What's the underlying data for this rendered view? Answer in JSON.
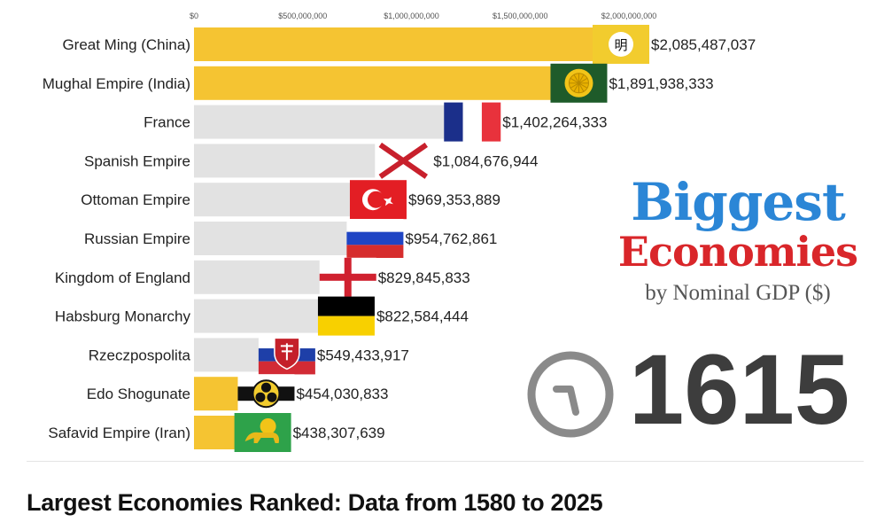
{
  "chart_data": {
    "type": "bar",
    "orientation": "horizontal",
    "xlim": [
      0,
      2085487037
    ],
    "ticks": [
      {
        "value": 0,
        "label": "$0"
      },
      {
        "value": 500000000,
        "label": "$500,000,000"
      },
      {
        "value": 1000000000,
        "label": "$1,000,000,000"
      },
      {
        "value": 1500000000,
        "label": "$1,500,000,000"
      },
      {
        "value": 2000000000,
        "label": "$2,000,000,000"
      }
    ],
    "categories": [
      "Great Ming (China)",
      "Mughal Empire (India)",
      "France",
      "Spanish Empire",
      "Ottoman Empire",
      "Russian Empire",
      "Kingdom of England",
      "Habsburg Monarchy",
      "Rzeczpospolita",
      "Edo Shogunate",
      "Safavid Empire (Iran)"
    ],
    "values": [
      2085487037,
      1891938333,
      1402264333,
      1084676944,
      969353889,
      954762861,
      829845833,
      822584444,
      549433917,
      454030833,
      438307639
    ],
    "value_labels": [
      "$2,085,487,037",
      "$1,891,938,333",
      "$1,402,264,333",
      "$1,084,676,944",
      "$969,353,889",
      "$954,762,861",
      "$829,845,833",
      "$822,584,444",
      "$549,433,917",
      "$454,030,833",
      "$438,307,639"
    ],
    "bar_colors": [
      "#f5c432",
      "#f5c432",
      "#e2e2e2",
      "#e2e2e2",
      "#e2e2e2",
      "#e2e2e2",
      "#e2e2e2",
      "#e2e2e2",
      "#e2e2e2",
      "#f5c432",
      "#f5c432"
    ],
    "flags": [
      "ming-flag-icon",
      "mughal-flag-icon",
      "france-flag-icon",
      "spain-cross-flag-icon",
      "ottoman-flag-icon",
      "russia-flag-icon",
      "england-flag-icon",
      "habsburg-flag-icon",
      "poland-lithuania-flag-icon",
      "edo-flag-icon",
      "safavid-flag-icon"
    ],
    "flag_text": {
      "ming": "明"
    },
    "title": "Biggest Economies",
    "subtitle": "by Nominal GDP ($)",
    "year": "1615"
  },
  "headline": {
    "line1": "Biggest",
    "line2": "Economies",
    "line3": "by Nominal GDP ($)"
  },
  "year_label": "1615",
  "caption": "Largest Economies Ranked: Data from 1580 to 2025",
  "colors": {
    "gold": "#f5c432",
    "gray": "#e2e2e2",
    "blue_title": "#2b86d6",
    "red_title": "#d9262a",
    "year": "#3d3d3d"
  }
}
